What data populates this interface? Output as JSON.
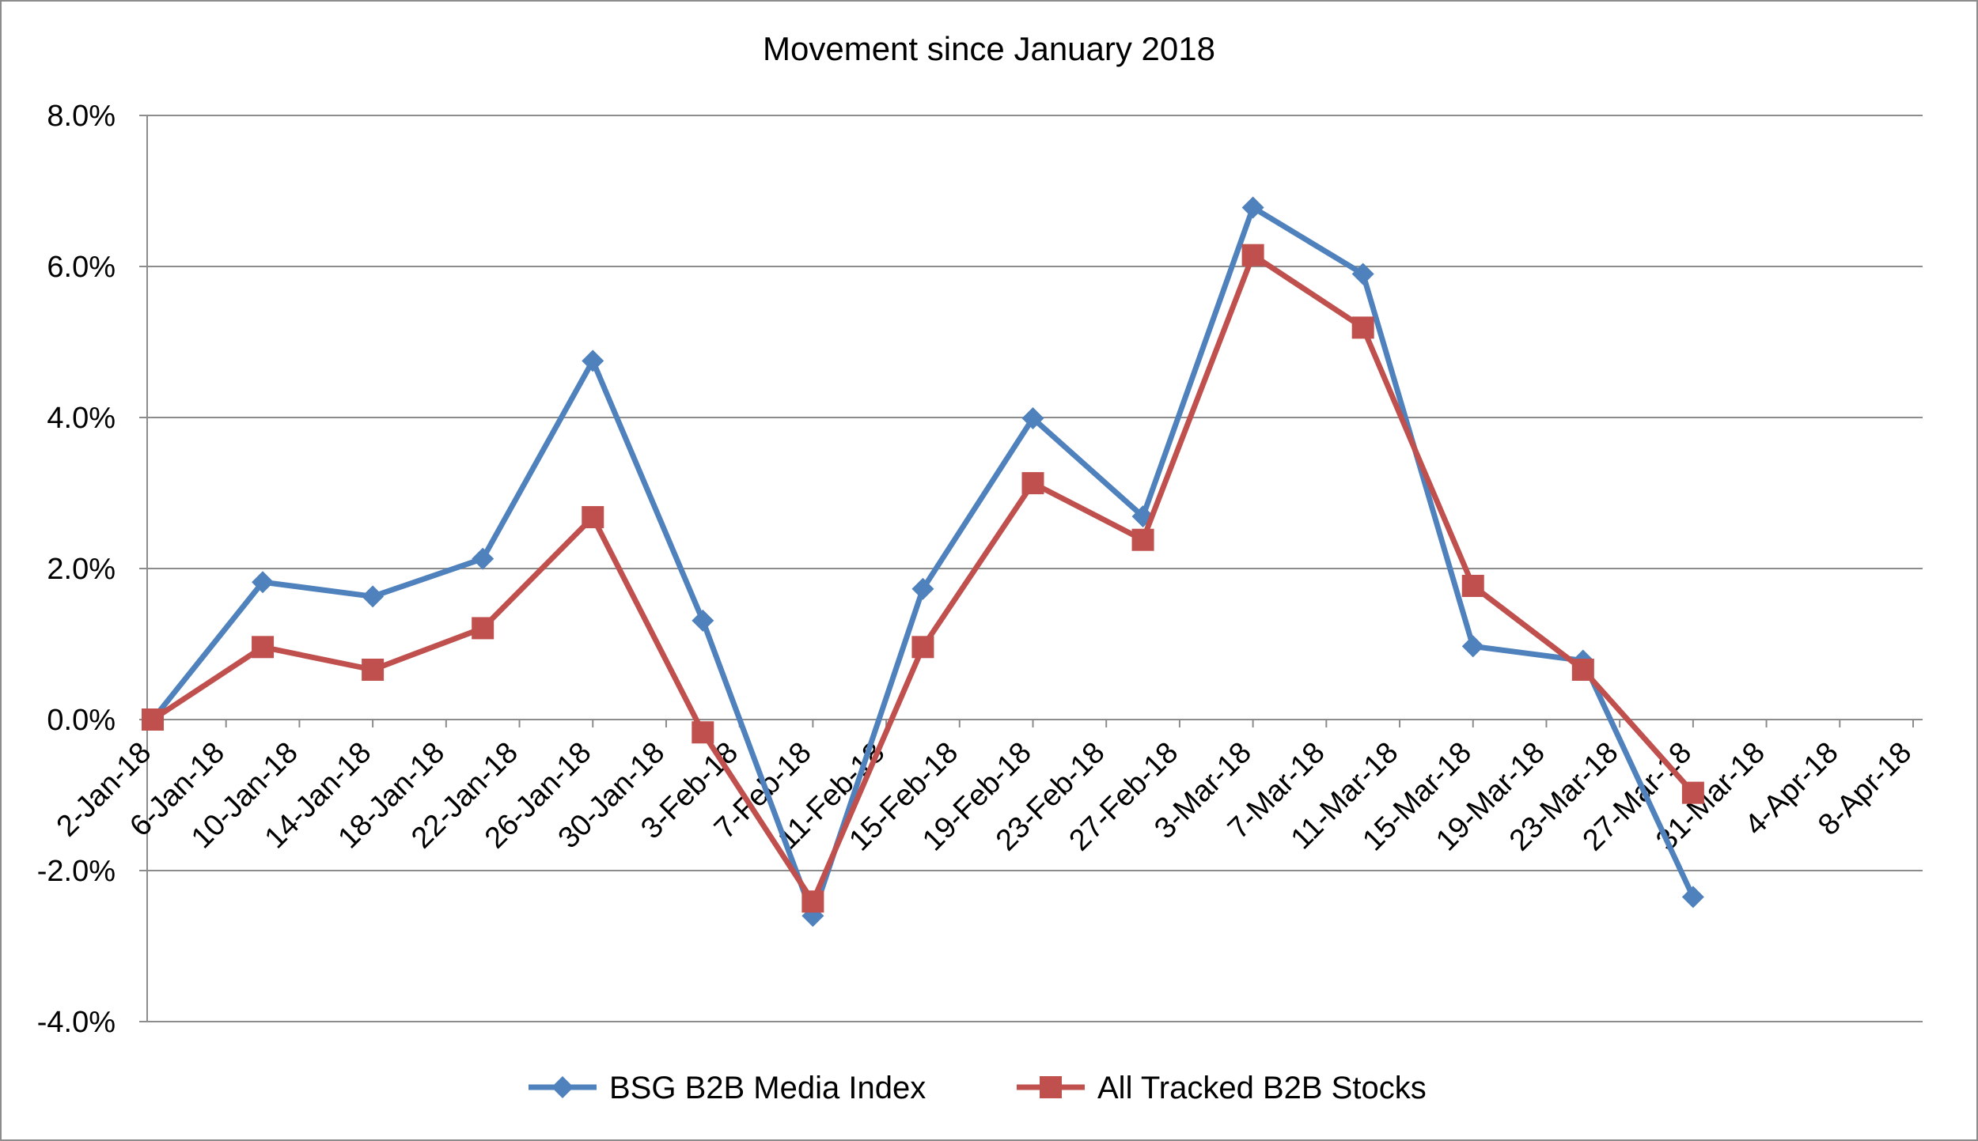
{
  "chart_data": {
    "type": "line",
    "title": "Movement since January 2018",
    "xlabel": "",
    "ylabel": "",
    "ylim": [
      -0.04,
      0.08
    ],
    "yticks": [
      "-4.0%",
      "-2.0%",
      "0.0%",
      "2.0%",
      "4.0%",
      "6.0%",
      "8.0%"
    ],
    "ytick_values": [
      -0.04,
      -0.02,
      0.0,
      0.02,
      0.04,
      0.06,
      0.08
    ],
    "x": [
      "2-Jan-18",
      "6-Jan-18",
      "10-Jan-18",
      "14-Jan-18",
      "18-Jan-18",
      "22-Jan-18",
      "26-Jan-18",
      "30-Jan-18",
      "3-Feb-18",
      "7-Feb-18",
      "11-Feb-18",
      "15-Feb-18",
      "19-Feb-18",
      "23-Feb-18",
      "27-Feb-18",
      "3-Mar-18",
      "7-Mar-18",
      "11-Mar-18",
      "15-Mar-18",
      "19-Mar-18",
      "23-Mar-18",
      "27-Mar-18",
      "31-Mar-18",
      "4-Apr-18",
      "8-Apr-18"
    ],
    "grid": true,
    "legend_position": "bottom",
    "series": [
      {
        "name": "BSG B2B Media Index",
        "color": "#4f81bd",
        "marker": "diamond",
        "points": [
          [
            "2-Jan-18",
            0.0
          ],
          [
            "8-Jan-18",
            0.0182
          ],
          [
            "14-Jan-18",
            0.0163
          ],
          [
            "20-Jan-18",
            0.0213
          ],
          [
            "26-Jan-18",
            0.0475
          ],
          [
            "1-Feb-18",
            0.0131
          ],
          [
            "7-Feb-18",
            -0.026
          ],
          [
            "13-Feb-18",
            0.0173
          ],
          [
            "19-Feb-18",
            0.0399
          ],
          [
            "25-Feb-18",
            0.0269
          ],
          [
            "3-Mar-18",
            0.0678
          ],
          [
            "9-Mar-18",
            0.059
          ],
          [
            "15-Mar-18",
            0.0097
          ],
          [
            "21-Mar-18",
            0.0078
          ],
          [
            "27-Mar-18",
            -0.0235
          ]
        ]
      },
      {
        "name": "All Tracked B2B Stocks",
        "color": "#c0504d",
        "marker": "square",
        "points": [
          [
            "2-Jan-18",
            0.0
          ],
          [
            "8-Jan-18",
            0.0096
          ],
          [
            "14-Jan-18",
            0.0066
          ],
          [
            "20-Jan-18",
            0.0121
          ],
          [
            "26-Jan-18",
            0.0268
          ],
          [
            "1-Feb-18",
            -0.0017
          ],
          [
            "7-Feb-18",
            -0.0241
          ],
          [
            "13-Feb-18",
            0.0096
          ],
          [
            "19-Feb-18",
            0.0313
          ],
          [
            "25-Feb-18",
            0.0238
          ],
          [
            "3-Mar-18",
            0.0615
          ],
          [
            "9-Mar-18",
            0.0519
          ],
          [
            "15-Mar-18",
            0.0177
          ],
          [
            "21-Mar-18",
            0.0066
          ],
          [
            "27-Mar-18",
            -0.0097
          ]
        ]
      }
    ]
  }
}
